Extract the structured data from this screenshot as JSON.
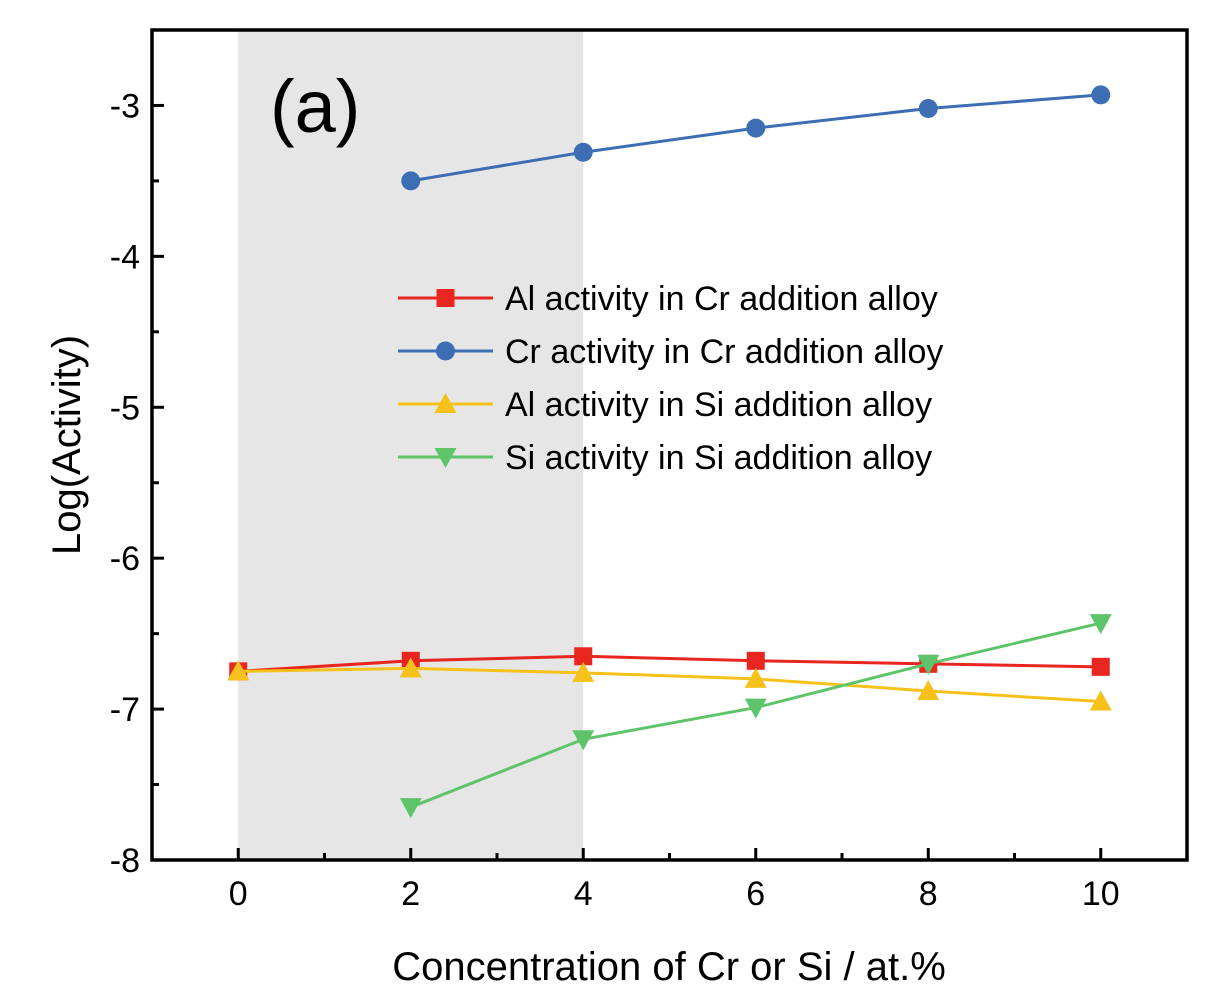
{
  "chart_data": {
    "type": "line",
    "panel_label": "(a)",
    "title": "",
    "xlabel": "Concentration of Cr or Si / at.%",
    "ylabel": "Log(Activity)",
    "xlim": [
      -1,
      11
    ],
    "ylim": [
      -8,
      -2.5
    ],
    "x_ticks": [
      "0",
      "2",
      "4",
      "6",
      "8",
      "10"
    ],
    "y_ticks": [
      "-3",
      "-4",
      "-5",
      "-6",
      "-7",
      "-8"
    ],
    "grid": false,
    "legend_position": "center-right",
    "shaded_region": {
      "x_from": 0,
      "x_to": 4,
      "color": "#e6e6e6"
    },
    "series": [
      {
        "name": "Al activity in Cr addition alloy",
        "marker": "square",
        "color": "#e8251f",
        "x": [
          0,
          2,
          4,
          6,
          8,
          10
        ],
        "y": [
          -6.75,
          -6.68,
          -6.65,
          -6.68,
          -6.7,
          -6.72
        ]
      },
      {
        "name": "Cr activity in Cr addition alloy",
        "marker": "circle",
        "color": "#3d6eb4",
        "x": [
          2,
          4,
          6,
          8,
          10
        ],
        "y": [
          -3.5,
          -3.31,
          -3.15,
          -3.02,
          -2.93
        ]
      },
      {
        "name": "Al activity in Si addition alloy",
        "marker": "triangle-up",
        "color": "#f5c11a",
        "x": [
          0,
          2,
          4,
          6,
          8,
          10
        ],
        "y": [
          -6.75,
          -6.73,
          -6.76,
          -6.8,
          -6.88,
          -6.95
        ]
      },
      {
        "name": "Si activity in Si addition alloy",
        "marker": "triangle-down",
        "color": "#5ec46a",
        "x": [
          2,
          4,
          6,
          8,
          10
        ],
        "y": [
          -7.65,
          -7.2,
          -6.99,
          -6.7,
          -6.43
        ]
      }
    ]
  }
}
